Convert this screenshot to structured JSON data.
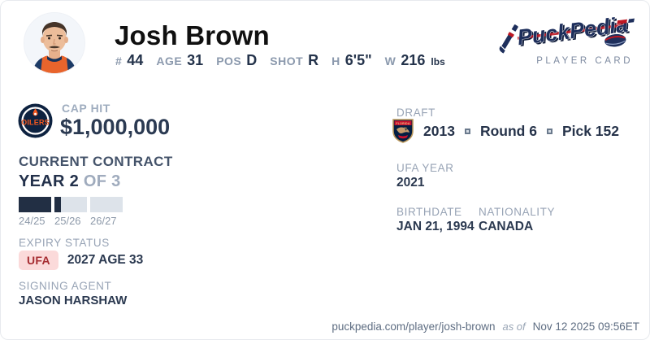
{
  "header": {
    "name": "Josh Brown",
    "stats": [
      {
        "label": "#",
        "value": "44",
        "suffix": ""
      },
      {
        "label": "AGE",
        "value": "31",
        "suffix": ""
      },
      {
        "label": "POS",
        "value": "D",
        "suffix": ""
      },
      {
        "label": "SHOT",
        "value": "R",
        "suffix": ""
      },
      {
        "label": "H",
        "value": "6'5\"",
        "suffix": ""
      },
      {
        "label": "W",
        "value": "216",
        "suffix": "lbs"
      }
    ],
    "brand_name": "PuckPedia",
    "brand_subtitle": "PLAYER CARD",
    "team_logo": "edmonton-oilers",
    "team_logo_text": "OILERS"
  },
  "left": {
    "cap_hit_label": "CAP HIT",
    "cap_hit_value": "$1,000,000",
    "contract_title": "CURRENT CONTRACT",
    "year_current": "YEAR 2",
    "year_of": "OF 3",
    "seasons": [
      {
        "label": "24/25",
        "fill": 1
      },
      {
        "label": "25/26",
        "fill": 0.2
      },
      {
        "label": "26/27",
        "fill": 0
      }
    ],
    "expiry_label": "EXPIRY STATUS",
    "expiry_badge": "UFA",
    "expiry_value": "2027 AGE 33",
    "agent_label": "SIGNING AGENT",
    "agent_value": "JASON HARSHAW"
  },
  "right": {
    "draft_label": "DRAFT",
    "draft_team_logo": "florida-panthers",
    "draft_year": "2013",
    "draft_round": "Round 6",
    "draft_pick": "Pick 152",
    "ufa_year_label": "UFA YEAR",
    "ufa_year_value": "2021",
    "birthdate_label": "BIRTHDATE",
    "birthdate_value": "JAN 21, 1994",
    "nationality_label": "NATIONALITY",
    "nationality_value": "CANADA"
  },
  "footer": {
    "url": "puckpedia.com/player/josh-brown",
    "as_of_label": "as of",
    "timestamp": "Nov 12 2025 09:56ET"
  },
  "colors": {
    "value_navy": "#24334b",
    "label_gray": "#97a3b5",
    "bar_filled": "#222f44",
    "bar_empty": "#dde3ea",
    "ufa_badge_bg": "#fbdada",
    "ufa_badge_text": "#a62c31",
    "brand_navy": "#1e2f5c",
    "brand_red": "#bf1722",
    "oilers_navy": "#0d2240",
    "oilers_orange": "#f4581f",
    "panthers_navy": "#041e42",
    "panthers_red": "#c8102e",
    "panthers_gold": "#b9975b"
  }
}
